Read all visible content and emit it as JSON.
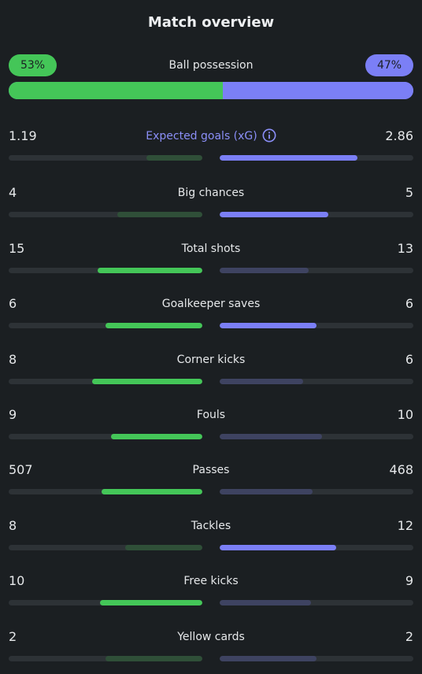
{
  "header": {
    "title": "Match overview"
  },
  "possession": {
    "label": "Ball possession",
    "home_label": "53%",
    "away_label": "47%",
    "home_pct": 53,
    "away_pct": 47
  },
  "colors": {
    "home_strong": "#44c658",
    "home_weak": "#2f4f38",
    "away_strong": "#7b7ff6",
    "away_weak": "#3e4361",
    "track": "#2d3236"
  },
  "stats": [
    {
      "name": "xg",
      "label": "Expected goals (xG)",
      "home": "1.19",
      "away": "2.86",
      "home_fill": 0.29,
      "away_fill": 0.71,
      "winner": "away",
      "info_icon": true
    },
    {
      "name": "big-chances",
      "label": "Big chances",
      "home": "4",
      "away": "5",
      "home_fill": 0.44,
      "away_fill": 0.56,
      "winner": "away"
    },
    {
      "name": "total-shots",
      "label": "Total shots",
      "home": "15",
      "away": "13",
      "home_fill": 0.54,
      "away_fill": 0.46,
      "winner": "home"
    },
    {
      "name": "goalkeeper-saves",
      "label": "Goalkeeper saves",
      "home": "6",
      "away": "6",
      "home_fill": 0.5,
      "away_fill": 0.5,
      "winner": "both"
    },
    {
      "name": "corner-kicks",
      "label": "Corner kicks",
      "home": "8",
      "away": "6",
      "home_fill": 0.57,
      "away_fill": 0.43,
      "winner": "home"
    },
    {
      "name": "fouls",
      "label": "Fouls",
      "home": "9",
      "away": "10",
      "home_fill": 0.47,
      "away_fill": 0.53,
      "winner": "home"
    },
    {
      "name": "passes",
      "label": "Passes",
      "home": "507",
      "away": "468",
      "home_fill": 0.52,
      "away_fill": 0.48,
      "winner": "home"
    },
    {
      "name": "tackles",
      "label": "Tackles",
      "home": "8",
      "away": "12",
      "home_fill": 0.4,
      "away_fill": 0.6,
      "winner": "away"
    },
    {
      "name": "free-kicks",
      "label": "Free kicks",
      "home": "10",
      "away": "9",
      "home_fill": 0.53,
      "away_fill": 0.47,
      "winner": "home"
    },
    {
      "name": "yellow-cards",
      "label": "Yellow cards",
      "home": "2",
      "away": "2",
      "home_fill": 0.5,
      "away_fill": 0.5,
      "winner": "none"
    }
  ]
}
